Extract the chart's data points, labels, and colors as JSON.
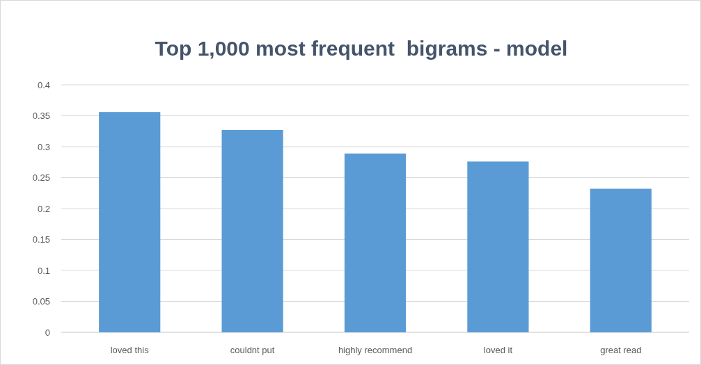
{
  "chart_data": {
    "type": "bar",
    "title": "Top 1,000 most frequent  bigrams - model",
    "categories": [
      "loved this",
      "couldnt put",
      "highly recommend",
      "loved it",
      "great read"
    ],
    "values": [
      0.356,
      0.327,
      0.289,
      0.276,
      0.232
    ],
    "color": "#5b9bd5",
    "ylim": [
      0,
      0.4
    ],
    "yticks": [
      0,
      0.05,
      0.1,
      0.15,
      0.2,
      0.25,
      0.3,
      0.35,
      0.4
    ],
    "grid": "y"
  }
}
